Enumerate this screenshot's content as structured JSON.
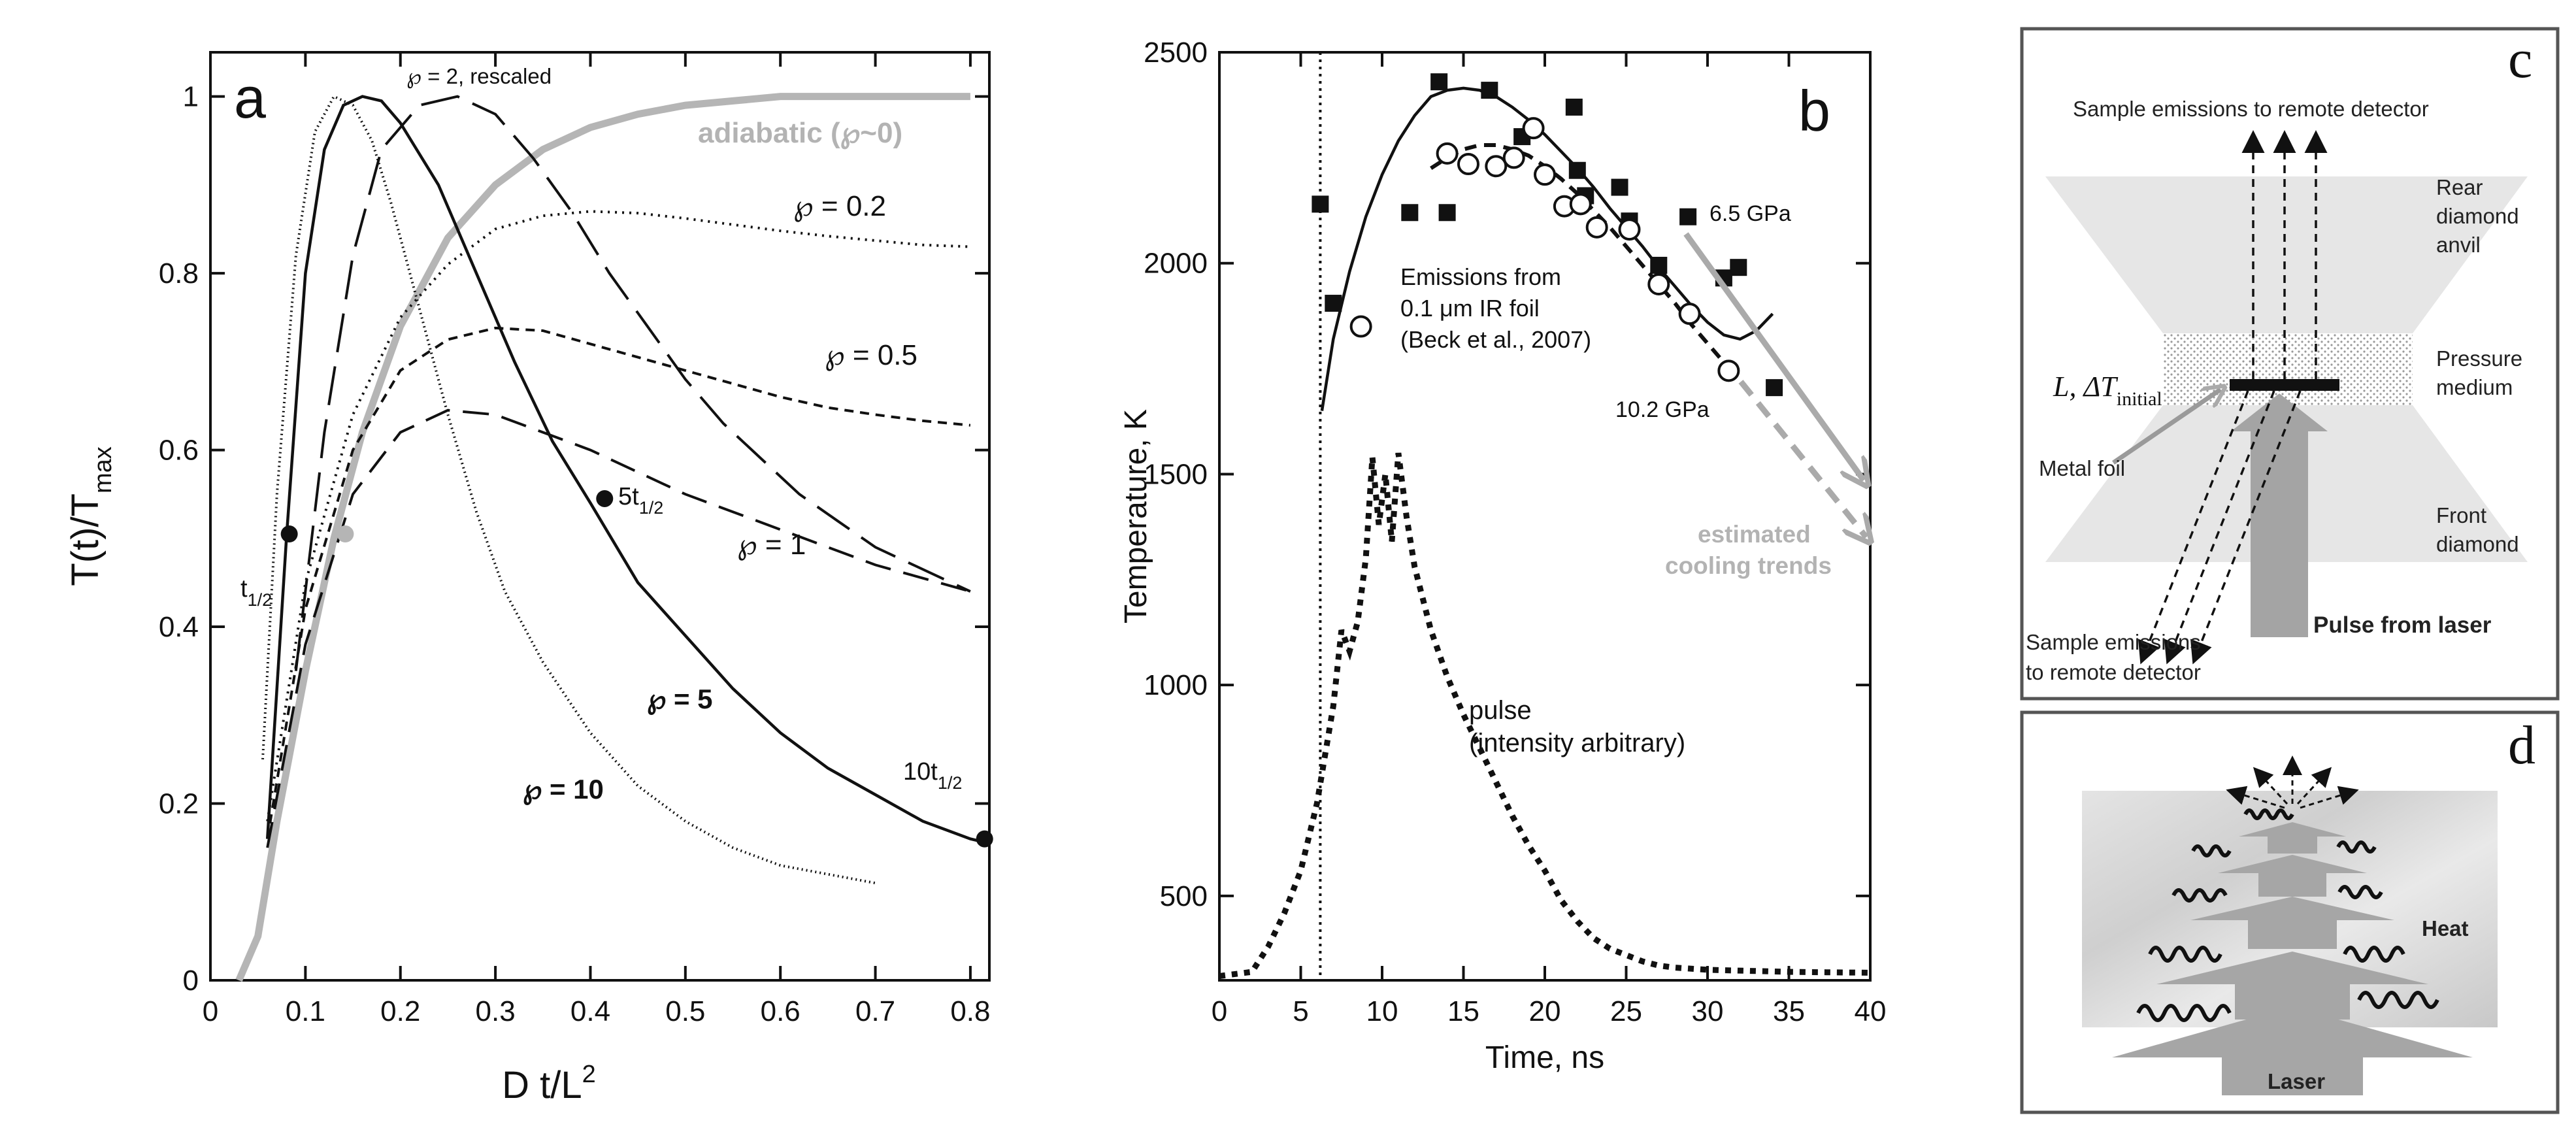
{
  "chart_data": [
    {
      "panel": "a",
      "type": "line",
      "xlabel": "D t/L",
      "xlabel_sup": "2",
      "ylabel": "T(t)/T",
      "ylabel_sub": "max",
      "xlim": [
        0,
        0.82
      ],
      "ylim": [
        0,
        1.05
      ],
      "xticks": [
        "0",
        "0.1",
        "0.2",
        "0.3",
        "0.4",
        "0.5",
        "0.6",
        "0.7",
        "0.8"
      ],
      "xtick_values": [
        0,
        0.1,
        0.2,
        0.3,
        0.4,
        0.5,
        0.6,
        0.7,
        0.8
      ],
      "yticks": [
        "0",
        "0.2",
        "0.4",
        "0.6",
        "0.8",
        "1"
      ],
      "ytick_values": [
        0,
        0.2,
        0.4,
        0.6,
        0.8,
        1.0
      ],
      "series": [
        {
          "name": "adiabatic (℘~0)",
          "style": "grey",
          "x": [
            0.03,
            0.05,
            0.07,
            0.1,
            0.13,
            0.16,
            0.2,
            0.25,
            0.3,
            0.35,
            0.4,
            0.45,
            0.5,
            0.55,
            0.6,
            0.7,
            0.8
          ],
          "y": [
            0,
            0.05,
            0.18,
            0.35,
            0.5,
            0.62,
            0.74,
            0.84,
            0.9,
            0.94,
            0.965,
            0.98,
            0.99,
            0.995,
            1,
            1,
            1
          ]
        },
        {
          "name": "℘ = 2, rescaled",
          "style": "longdash",
          "x": [
            0.09,
            0.12,
            0.15,
            0.18,
            0.22,
            0.26,
            0.3,
            0.34,
            0.38,
            0.42,
            0.46,
            0.5,
            0.54,
            0.58,
            0.62,
            0.66,
            0.7,
            0.74,
            0.8
          ],
          "y": [
            0.35,
            0.62,
            0.82,
            0.94,
            0.99,
            1.0,
            0.98,
            0.93,
            0.87,
            0.8,
            0.74,
            0.68,
            0.63,
            0.59,
            0.55,
            0.52,
            0.49,
            0.47,
            0.44
          ]
        },
        {
          "name": "℘ = 0.2",
          "style": "dotted",
          "x": [
            0.06,
            0.1,
            0.15,
            0.2,
            0.25,
            0.3,
            0.35,
            0.4,
            0.45,
            0.5,
            0.55,
            0.6,
            0.65,
            0.7,
            0.75,
            0.8
          ],
          "y": [
            0.18,
            0.45,
            0.64,
            0.75,
            0.81,
            0.85,
            0.865,
            0.87,
            0.868,
            0.862,
            0.855,
            0.848,
            0.842,
            0.837,
            0.832,
            0.83
          ]
        },
        {
          "name": "℘ = 0.5",
          "style": "shortdash",
          "x": [
            0.06,
            0.1,
            0.15,
            0.2,
            0.25,
            0.3,
            0.35,
            0.4,
            0.45,
            0.5,
            0.55,
            0.6,
            0.65,
            0.7,
            0.75,
            0.8
          ],
          "y": [
            0.16,
            0.42,
            0.6,
            0.69,
            0.725,
            0.738,
            0.735,
            0.72,
            0.705,
            0.69,
            0.675,
            0.66,
            0.648,
            0.64,
            0.633,
            0.628
          ]
        },
        {
          "name": "℘ = 1",
          "style": "medash",
          "x": [
            0.06,
            0.1,
            0.15,
            0.2,
            0.25,
            0.3,
            0.35,
            0.4,
            0.45,
            0.5,
            0.55,
            0.6,
            0.65,
            0.7,
            0.75,
            0.8
          ],
          "y": [
            0.15,
            0.38,
            0.55,
            0.62,
            0.645,
            0.64,
            0.62,
            0.6,
            0.575,
            0.55,
            0.53,
            0.51,
            0.49,
            0.47,
            0.455,
            0.44
          ]
        },
        {
          "name": "℘ = 5",
          "style": "solid",
          "x": [
            0.06,
            0.08,
            0.1,
            0.12,
            0.14,
            0.16,
            0.18,
            0.2,
            0.24,
            0.28,
            0.32,
            0.36,
            0.4,
            0.45,
            0.5,
            0.55,
            0.6,
            0.65,
            0.7,
            0.75,
            0.8,
            0.82
          ],
          "y": [
            0.16,
            0.5,
            0.8,
            0.94,
            0.99,
            1.0,
            0.995,
            0.97,
            0.9,
            0.8,
            0.7,
            0.61,
            0.54,
            0.45,
            0.39,
            0.33,
            0.28,
            0.24,
            0.21,
            0.18,
            0.16,
            0.155
          ]
        },
        {
          "name": "℘ = 10",
          "style": "dotsolid",
          "x": [
            0.055,
            0.07,
            0.09,
            0.11,
            0.13,
            0.15,
            0.17,
            0.19,
            0.22,
            0.25,
            0.28,
            0.31,
            0.35,
            0.4,
            0.45,
            0.5,
            0.55,
            0.6,
            0.65,
            0.7
          ],
          "y": [
            0.25,
            0.55,
            0.82,
            0.96,
            1.0,
            0.99,
            0.95,
            0.88,
            0.76,
            0.64,
            0.53,
            0.44,
            0.36,
            0.28,
            0.22,
            0.18,
            0.15,
            0.13,
            0.12,
            0.11
          ]
        }
      ],
      "markers": [
        {
          "label": "t1/2",
          "x": 0.083,
          "y": 0.505,
          "color": "black"
        },
        {
          "label": "",
          "x": 0.142,
          "y": 0.505,
          "color": "grey"
        },
        {
          "label": "5t1/2",
          "x": 0.415,
          "y": 0.545,
          "color": "black"
        },
        {
          "label": "10t1/2",
          "x": 0.815,
          "y": 0.16,
          "color": "black"
        }
      ],
      "annotations": {
        "panel_letter": "a",
        "p2_label": "℘ = 2, rescaled",
        "adiabatic_label": "adiabatic (℘~0)",
        "p02_label": "℘ = 0.2",
        "p05_label": "℘ = 0.5",
        "p1_label": "℘ = 1",
        "p5_label": "℘ = 5",
        "p10_label": "℘ = 10",
        "t_half_base": "t",
        "t_half_sub": "1/2",
        "five_t_base": "5t",
        "five_t_sub": "1/2",
        "ten_t_base": "10t",
        "ten_t_sub": "1/2"
      }
    },
    {
      "panel": "b",
      "type": "scatter",
      "xlabel": "Time, ns",
      "ylabel": "Temperature, K",
      "xlim": [
        0,
        40
      ],
      "ylim": [
        300,
        2500
      ],
      "xticks": [
        "0",
        "5",
        "10",
        "15",
        "20",
        "25",
        "30",
        "35",
        "40"
      ],
      "xtick_values": [
        0,
        5,
        10,
        15,
        20,
        25,
        30,
        35,
        40
      ],
      "yticks": [
        "500",
        "1000",
        "1500",
        "2000",
        "2500"
      ],
      "ytick_values": [
        500,
        1000,
        1500,
        2000,
        2500
      ],
      "series": [
        {
          "name": "6.5 GPa",
          "marker": "filled-square",
          "x": [
            6.2,
            7,
            11.7,
            13.5,
            14,
            16.6,
            18.6,
            21.8,
            22,
            22.5,
            24.6,
            25.2,
            27,
            28.8,
            31,
            31.9,
            34.1
          ],
          "y": [
            2140,
            1905,
            2120,
            2430,
            2120,
            2410,
            2300,
            2370,
            2220,
            2160,
            2180,
            2100,
            1995,
            2110,
            1965,
            1990,
            1705
          ]
        },
        {
          "name": "10.2 GPa",
          "marker": "open-circle",
          "x": [
            8.7,
            14,
            15.3,
            17,
            18.1,
            19.3,
            20,
            21.2,
            22.2,
            23.2,
            25.2,
            27,
            28.9,
            31.3
          ],
          "y": [
            1850,
            2260,
            2235,
            2230,
            2250,
            2320,
            2210,
            2135,
            2140,
            2085,
            2080,
            1950,
            1880,
            1745
          ]
        },
        {
          "name": "fit 6.5 GPa",
          "style": "solid",
          "x": [
            6.3,
            7,
            8,
            9,
            10,
            11,
            12,
            13,
            14,
            15,
            16,
            17,
            18,
            19,
            20,
            21,
            22,
            23,
            24,
            25,
            26,
            27,
            28,
            29,
            30,
            31,
            32,
            33,
            34
          ],
          "y": [
            1650,
            1820,
            1980,
            2110,
            2210,
            2290,
            2350,
            2395,
            2410,
            2415,
            2410,
            2395,
            2370,
            2340,
            2305,
            2265,
            2225,
            2180,
            2130,
            2085,
            2040,
            1990,
            1945,
            1900,
            1860,
            1830,
            1820,
            1840,
            1880
          ]
        },
        {
          "name": "fit 10.2 GPa",
          "style": "dashed",
          "x": [
            13,
            14,
            15,
            16,
            17,
            18,
            19,
            20,
            21,
            22,
            23,
            24,
            25,
            26,
            27,
            28,
            29,
            30,
            31
          ],
          "y": [
            2225,
            2250,
            2270,
            2280,
            2280,
            2270,
            2255,
            2230,
            2200,
            2165,
            2125,
            2085,
            2040,
            1995,
            1950,
            1905,
            1855,
            1810,
            1765
          ]
        },
        {
          "name": "pulse (intensity arbitrary)",
          "style": "dotted",
          "x": [
            0,
            2,
            3,
            4,
            5,
            6,
            7,
            7.5,
            8,
            8.5,
            9,
            9.4,
            9.8,
            10.2,
            10.6,
            11,
            11.5,
            12,
            13,
            14,
            15,
            16,
            17,
            18,
            19,
            20,
            21,
            22,
            23,
            24,
            25,
            26,
            27,
            28,
            30,
            35,
            40
          ],
          "y": [
            310,
            320,
            380,
            460,
            560,
            720,
            950,
            1130,
            1080,
            1150,
            1300,
            1540,
            1380,
            1500,
            1340,
            1550,
            1400,
            1280,
            1130,
            1020,
            930,
            850,
            770,
            690,
            620,
            560,
            490,
            440,
            400,
            375,
            360,
            345,
            335,
            330,
            325,
            320,
            318
          ]
        }
      ],
      "vline_x": 6.2,
      "annotations": {
        "panel_letter": "b",
        "emissions_1": "Emissions from",
        "emissions_2": "0.1 μm IR foil",
        "emissions_3": "(Beck et al., 2007)",
        "gpa_65": "6.5 GPa",
        "gpa_102": "10.2 GPa",
        "trend_1": "estimated",
        "trend_2": "cooling trends",
        "pulse_1": "pulse",
        "pulse_2": "(intensity arbitrary)"
      }
    }
  ],
  "panel_c": {
    "letter": "c",
    "top_emissions": "Sample emissions to remote detector",
    "rear_1": "Rear",
    "rear_2": "diamond",
    "rear_3": "anvil",
    "pressure_1": "Pressure",
    "pressure_2": "medium",
    "l_label": "L, ΔT",
    "l_sub": "initial",
    "metal_foil": "Metal foil",
    "front_1": "Front",
    "front_2": "diamond",
    "bottom_emissions_1": "Sample emissions",
    "bottom_emissions_2": "to remote detector",
    "pulse_label": "Pulse from laser"
  },
  "panel_d": {
    "letter": "d",
    "heat_label": "Heat",
    "laser_label": "Laser"
  }
}
